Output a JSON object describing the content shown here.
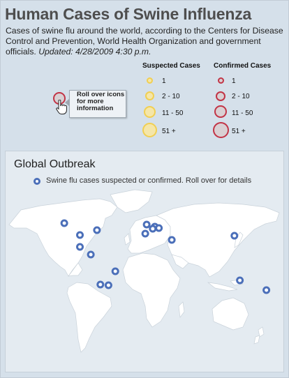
{
  "header": {
    "title": "Human Cases of Swine Influenza",
    "intro": "Cases of swine flu around the world, according to the Centers for Disease Control and Prevention, World Health Organization and government officials.",
    "updated": "Updated: 4/28/2009 4:30 p.m."
  },
  "legend": {
    "suspected_header": "Suspected Cases",
    "confirmed_header": "Confirmed Cases",
    "ranges": [
      "1",
      "2 - 10",
      "11 - 50",
      "51 +"
    ],
    "suspected_color": "#f1cf52",
    "confirmed_color": "#c23446"
  },
  "callout": {
    "text": "Roll over icons for more information",
    "icon": "pointer-hand-icon"
  },
  "global": {
    "title": "Global Outbreak",
    "legend_text": "Swine flu cases suspected or confirmed. Roll over for details",
    "marker_color": "#4b6fb9",
    "land_color": "#ffffff",
    "sea_color": "#e4ebf1"
  },
  "map": {
    "markers": [
      {
        "id": "canada-west",
        "lat": 55,
        "lon": -123
      },
      {
        "id": "canada-east",
        "lat": 45,
        "lon": -75
      },
      {
        "id": "usa",
        "lat": 38,
        "lon": -100
      },
      {
        "id": "mexico",
        "lat": 21,
        "lon": -100
      },
      {
        "id": "costa-rica",
        "lat": 10,
        "lon": -84
      },
      {
        "id": "brazil",
        "lat": -14,
        "lon": -48
      },
      {
        "id": "chile",
        "lat": -33,
        "lon": -70
      },
      {
        "id": "argentina",
        "lat": -34,
        "lon": -58
      },
      {
        "id": "uk",
        "lat": 53,
        "lon": -2
      },
      {
        "id": "germany",
        "lat": 50,
        "lon": 10
      },
      {
        "id": "switzerland",
        "lat": 47,
        "lon": 7
      },
      {
        "id": "austria",
        "lat": 48,
        "lon": 16
      },
      {
        "id": "spain",
        "lat": 40,
        "lon": -4
      },
      {
        "id": "israel",
        "lat": 31,
        "lon": 35
      },
      {
        "id": "south-korea",
        "lat": 37,
        "lon": 127
      },
      {
        "id": "australia",
        "lat": -27,
        "lon": 135
      },
      {
        "id": "new-zealand",
        "lat": -41,
        "lon": 174
      }
    ]
  }
}
